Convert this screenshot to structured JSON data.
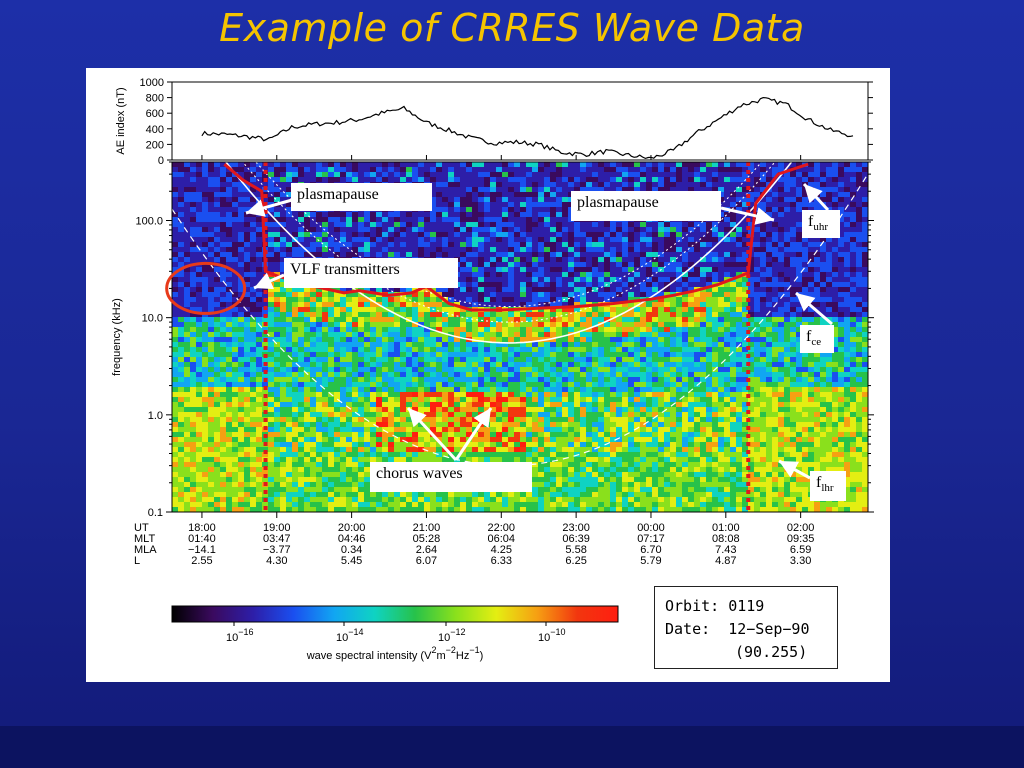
{
  "slide": {
    "title": "Example of CRRES Wave Data",
    "colors": {
      "background": "#1d2fa8",
      "title": "#f5c400",
      "plasmapause_line": "#e0171c",
      "annotation_circle": "#e83a1a"
    }
  },
  "chart_data": [
    {
      "type": "line",
      "ylabel": "AE index (nT)",
      "yticks": [
        "1000",
        "800",
        "600",
        "400",
        "200",
        "0"
      ],
      "ylim": [
        0,
        1000
      ],
      "x": [
        18.0,
        18.3,
        18.6,
        18.9,
        19.2,
        19.5,
        19.8,
        20.1,
        20.4,
        20.7,
        21.0,
        21.3,
        21.6,
        21.9,
        22.2,
        22.5,
        22.8,
        23.1,
        23.4,
        23.7,
        24.0,
        24.3,
        24.6,
        24.9,
        25.2,
        25.5,
        25.8,
        26.1,
        26.4,
        26.7
      ],
      "values": [
        340,
        330,
        300,
        260,
        420,
        460,
        480,
        520,
        600,
        660,
        480,
        380,
        280,
        220,
        230,
        200,
        100,
        70,
        110,
        60,
        20,
        120,
        340,
        520,
        700,
        780,
        720,
        520,
        380,
        310
      ],
      "grid": false
    },
    {
      "type": "heatmap",
      "ylabel": "frequency   (kHz)",
      "yscale": "log",
      "ylim": [
        0.1,
        400
      ],
      "yticks": [
        "100.0",
        "10.0",
        "1.0",
        "0.1"
      ],
      "ytick_values": [
        100,
        10,
        1,
        0.1
      ],
      "xlim": [
        17.6,
        26.9
      ],
      "x_tick_values": [
        18,
        19,
        20,
        21,
        22,
        23,
        24,
        25,
        26
      ],
      "x_rows": [
        {
          "name": "UT",
          "values": [
            "18:00",
            "19:00",
            "20:00",
            "21:00",
            "22:00",
            "23:00",
            "00:00",
            "01:00",
            "02:00"
          ]
        },
        {
          "name": "MLT",
          "values": [
            "01:40",
            "03:47",
            "04:46",
            "05:28",
            "06:04",
            "06:39",
            "07:17",
            "08:08",
            "09:35"
          ]
        },
        {
          "name": "MLA",
          "values": [
            "−14.1",
            "−3.77",
            "0.34",
            "2.64",
            "4.25",
            "5.58",
            "6.70",
            "7.43",
            "6.59"
          ]
        },
        {
          "name": "L",
          "values": [
            "2.55",
            "4.30",
            "5.45",
            "6.07",
            "6.33",
            "6.25",
            "5.79",
            "4.87",
            "3.30"
          ]
        }
      ],
      "plasmapause_crossings_ut": [
        18.85,
        25.3
      ],
      "plasmapause_line": {
        "x": [
          18.3,
          18.55,
          18.8,
          18.85,
          19.0,
          19.5,
          19.9,
          20.1,
          20.5,
          20.8,
          21.0,
          21.3,
          21.6,
          22.0,
          22.5,
          23.0,
          23.5,
          24.0,
          24.3,
          24.6,
          24.9,
          25.2,
          25.3,
          25.4,
          25.7,
          26.1
        ],
        "values": [
          380,
          260,
          200,
          30,
          27,
          21,
          18,
          19,
          17,
          18,
          21,
          14,
          12,
          12,
          12.5,
          13,
          14,
          15.5,
          17,
          19,
          22,
          27,
          29,
          150,
          300,
          380
        ]
      },
      "annotations": [
        {
          "text": "plasmapause"
        },
        {
          "text": "plasmapause"
        },
        {
          "text": "VLF transmitters"
        },
        {
          "text": "chorus waves"
        },
        {
          "text": "f",
          "sub": "uhr"
        },
        {
          "text": "f",
          "sub": "ce"
        },
        {
          "text": "f",
          "sub": "lhr"
        }
      ]
    }
  ],
  "colorbar": {
    "label": "wave spectral intensity  (V",
    "label_parts": [
      "wave spectral intensity  (V",
      "2",
      "m",
      "−2",
      "Hz",
      "−1",
      ")"
    ],
    "ticks": [
      {
        "base": "10",
        "exp": "−16"
      },
      {
        "base": "10",
        "exp": "−14"
      },
      {
        "base": "10",
        "exp": "−12"
      },
      {
        "base": "10",
        "exp": "−10"
      }
    ],
    "colors": [
      "#000000",
      "#3a0a5e",
      "#2d1ea8",
      "#1a4ff0",
      "#11a6f2",
      "#0fd3c2",
      "#27c24a",
      "#8ae01c",
      "#e4ee12",
      "#f6a012",
      "#f2360f",
      "#ff1e10"
    ]
  },
  "orbit_info": {
    "orbit_label": "Orbit:",
    "orbit_value": "0119",
    "date_label": "Date:",
    "date_value": "12−Sep−90",
    "doy": "(90.255)"
  }
}
